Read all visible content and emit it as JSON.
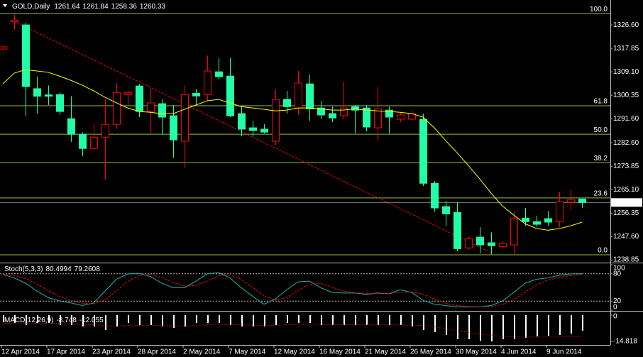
{
  "chart_data": [
    {
      "type": "candlestick",
      "title": "GOLD,Daily",
      "categories": [
        "12 Apr 2014",
        null,
        null,
        null,
        "17 Apr 2014",
        null,
        null,
        null,
        "23 Apr 2014",
        null,
        null,
        null,
        "28 Apr 2014",
        null,
        null,
        null,
        "2 May 2014",
        null,
        null,
        null,
        "7 May 2014",
        null,
        null,
        null,
        "12 May 2014",
        null,
        null,
        null,
        "16 May 2014",
        null,
        null,
        null,
        "21 May 2014",
        null,
        null,
        null,
        "26 May 2014",
        null,
        null,
        null,
        "30 May 2014",
        null,
        null,
        null,
        "4 Jun 2014",
        null,
        null,
        null,
        "9 Jun 2014",
        null,
        null,
        null
      ],
      "open": [
        1317.6,
        1327.8,
        1326.6,
        1302.8,
        1300.5,
        1300.6,
        1291.6,
        1285.8,
        1280.5,
        1284.7,
        1289.5,
        1300.6,
        1303.8,
        1294.3,
        1297.2,
        1292.7,
        1283.2,
        1301.1,
        1300.6,
        1309.1,
        1307.5,
        1293.5,
        1288.2,
        1287.7,
        1283.2,
        1298.8,
        1295.6,
        1304.6,
        1295.6,
        1293.5,
        1292.7,
        1296.1,
        1295.6,
        1288.2,
        1294.8,
        1291.4,
        1291.4,
        1291.4,
        1267.5,
        1258.8,
        1256.6,
        1243.4,
        1247.4,
        1245.3,
        1243.9,
        1244.5,
        1254.5,
        1253.2,
        1254.3,
        1253.2,
        1260.4,
        1261.64
      ],
      "high": [
        1319.0,
        1330.5,
        1327.5,
        1307.3,
        1304.0,
        1301.4,
        1300.0,
        1286.5,
        1289.5,
        1298.8,
        1304.9,
        1302.0,
        1304.6,
        1302.8,
        1298.8,
        1296.7,
        1304.1,
        1302.8,
        1315.2,
        1314.2,
        1314.2,
        1296.1,
        1290.8,
        1289.5,
        1302.8,
        1302.0,
        1309.4,
        1308.1,
        1298.3,
        1296.1,
        1305.4,
        1296.7,
        1296.7,
        1303.6,
        1296.1,
        1294.0,
        1294.8,
        1293.5,
        1268.3,
        1260.9,
        1260.4,
        1247.6,
        1251.1,
        1249.2,
        1245.8,
        1256.9,
        1258.3,
        1255.3,
        1257.2,
        1264.3,
        1265.1,
        1261.84
      ],
      "low": [
        1317.0,
        1324.8,
        1292.5,
        1293.5,
        1296.7,
        1293.0,
        1283.0,
        1277.6,
        1279.7,
        1268.9,
        1287.7,
        1296.7,
        1292.2,
        1286.1,
        1285.5,
        1277.0,
        1273.1,
        1296.7,
        1298.3,
        1306.2,
        1292.2,
        1285.0,
        1285.0,
        1286.1,
        1281.6,
        1293.5,
        1293.0,
        1290.8,
        1291.4,
        1290.3,
        1291.4,
        1286.1,
        1286.9,
        1283.4,
        1286.1,
        1290.3,
        1290.8,
        1266.5,
        1256.9,
        1251.6,
        1242.1,
        1242.6,
        1241.3,
        1241.0,
        1243.2,
        1241.0,
        1251.6,
        1251.1,
        1251.6,
        1251.1,
        1257.5,
        1258.36
      ],
      "close": [
        1318.4,
        1328.4,
        1303.6,
        1300.0,
        1300.0,
        1294.3,
        1285.8,
        1280.5,
        1284.7,
        1289.5,
        1301.4,
        1301.4,
        1294.3,
        1297.5,
        1292.2,
        1283.7,
        1300.6,
        1300.1,
        1309.4,
        1307.3,
        1292.7,
        1287.7,
        1287.2,
        1286.6,
        1298.8,
        1296.1,
        1304.9,
        1295.3,
        1293.0,
        1291.9,
        1295.6,
        1294.8,
        1288.5,
        1295.3,
        1292.2,
        1293.0,
        1293.5,
        1267.5,
        1258.3,
        1256.1,
        1243.1,
        1246.8,
        1244.5,
        1244.2,
        1245.0,
        1254.5,
        1253.2,
        1252.2,
        1253.0,
        1260.6,
        1261.4,
        1260.33
      ],
      "up_color": "#ff0000",
      "down_color": "#20ffa8",
      "ylim": [
        1237.9,
        1335.9
      ],
      "yticks": [
        {
          "value": 1326.6,
          "label": "1326.60"
        },
        1317.85,
        {
          "value": 1309.1,
          "label": "1309.10"
        },
        1300.35,
        {
          "value": 1291.6,
          "label": "1291.60"
        },
        {
          "value": 1282.6,
          "label": "1282.60"
        },
        1273.85,
        {
          "value": 1265.1,
          "label": "1265.10"
        },
        1256.35,
        {
          "value": 1247.6,
          "label": "1247.60"
        },
        1238.85
      ],
      "ma": {
        "color": "#ffff00",
        "values": [
          1304.6,
          1308.6,
          1309.9,
          1309.4,
          1308.9,
          1307.5,
          1305.9,
          1304.1,
          1302.0,
          1299.6,
          1297.5,
          1295.6,
          1294.3,
          1294.0,
          1293.5,
          1293.5,
          1295.1,
          1296.7,
          1298.3,
          1298.8,
          1297.5,
          1296.1,
          1295.6,
          1295.1,
          1294.5,
          1294.8,
          1295.6,
          1295.6,
          1295.3,
          1294.8,
          1294.8,
          1295.3,
          1294.8,
          1294.5,
          1294.3,
          1294.0,
          1293.5,
          1292.2,
          1288.2,
          1283.4,
          1278.9,
          1274.1,
          1269.1,
          1263.8,
          1259.0,
          1255.6,
          1252.4,
          1250.6,
          1250.0,
          1250.6,
          1251.6,
          1253.0
        ]
      },
      "fibonacci": {
        "color": "#8fbf3f",
        "high": 1330.8,
        "low": 1240.8,
        "levels": [
          {
            "value": 100,
            "label": "100.0"
          },
          61.8,
          {
            "value": 50,
            "label": "50.0"
          },
          38.2,
          23.6,
          {
            "value": 0,
            "label": "0.0"
          }
        ]
      },
      "trendline": {
        "color": "#ff0000",
        "x": [
          1,
          43
        ],
        "y": [
          1327.9,
          1241.6
        ]
      },
      "price_line_color": "#808080"
    },
    {
      "type": "line",
      "title": "Stoch(5,3,3)",
      "ylim": [
        0,
        100
      ],
      "yticks": [
        100,
        80,
        20,
        0
      ],
      "grid": true,
      "series": [
        {
          "color": "#20b2aa",
          "dash": false,
          "values": [
            78.3,
            71.0,
            59.4,
            42.0,
            27.5,
            20.3,
            15.9,
            10.1,
            15.9,
            42.0,
            68.1,
            79.7,
            81.2,
            73.9,
            59.4,
            49.3,
            49.3,
            63.8,
            79.7,
            82.6,
            71.0,
            49.3,
            30.4,
            13.0,
            24.6,
            44.9,
            62.3,
            63.8,
            49.3,
            39.1,
            37.7,
            37.7,
            34.8,
            37.7,
            36.2,
            44.9,
            39.1,
            21.7,
            13.0,
            10.1,
            7.2,
            7.2,
            7.2,
            10.1,
            20.3,
            39.1,
            59.4,
            68.1,
            71.0,
            76.8,
            79.7,
            80.4994
          ]
        },
        {
          "color": "#ff0000",
          "dash": true,
          "values": [
            80,
            76,
            69.6,
            57.5,
            42.9,
            29.9,
            21.2,
            15.4,
            14.0,
            22.7,
            42.0,
            63.3,
            76.3,
            78.3,
            71.5,
            60.9,
            52.7,
            54.1,
            64.3,
            75.4,
            77.8,
            67.6,
            50.2,
            30.9,
            22.7,
            27.5,
            43.9,
            57.0,
            58.5,
            50.7,
            42.0,
            38.2,
            36.7,
            36.7,
            36.2,
            39.6,
            40.1,
            35.2,
            24.6,
            14.9,
            10.1,
            8.2,
            7.2,
            8.2,
            12.5,
            23.2,
            39.6,
            55.5,
            66.2,
            72.0,
            75.8,
            79.2608
          ]
        }
      ]
    },
    {
      "type": "bar",
      "title": "MACD(12,26,9)",
      "ylim": [
        -16.8,
        1.2
      ],
      "yticks": [
        0,
        -14.818
      ],
      "series": [
        {
          "type": "bar",
          "color": "#ffffff",
          "values": [
            -4.0,
            -4.4,
            -5.6,
            -4.4,
            -4.4,
            -5.6,
            -5.6,
            -6.4,
            -6.4,
            -8.4,
            -6.4,
            -4.4,
            -5.6,
            -5.6,
            -6.4,
            -7.2,
            -6.4,
            -4.4,
            -4.4,
            -4.4,
            -5.6,
            -6.4,
            -6.4,
            -6.4,
            -5.6,
            -4.4,
            -4.4,
            -4.4,
            -5.6,
            -5.6,
            -5.6,
            -5.6,
            -5.6,
            -5.6,
            -5.6,
            -5.6,
            -6.4,
            -8.4,
            -9.6,
            -11.2,
            -13.6,
            -13.6,
            -14.4,
            -14.818,
            -13.6,
            -13.6,
            -12.8,
            -12.0,
            -11.6,
            -11.2,
            -10.4,
            -8.748
          ]
        },
        {
          "type": "line",
          "color": "#ff0000",
          "dash": true,
          "values": [
            -4.6,
            -4.6,
            -4.8,
            -4.7,
            -4.7,
            -4.9,
            -5.0,
            -5.3,
            -5.5,
            -6.1,
            -6.2,
            -5.8,
            -5.8,
            -5.7,
            -5.8,
            -6.1,
            -6.2,
            -5.8,
            -5.5,
            -5.3,
            -5.3,
            -5.5,
            -5.7,
            -5.8,
            -5.8,
            -5.5,
            -5.3,
            -5.1,
            -5.2,
            -5.3,
            -5.4,
            -5.4,
            -5.4,
            -5.5,
            -5.5,
            -5.5,
            -5.7,
            -5.8,
            -6.6,
            -7.5,
            -8.7,
            -9.7,
            -10.6,
            -11.5,
            -11.9,
            -12.3,
            -12.4,
            -12.4,
            -12.3,
            -12.3,
            -12.2,
            -12.055
          ]
        }
      ]
    }
  ]
}
